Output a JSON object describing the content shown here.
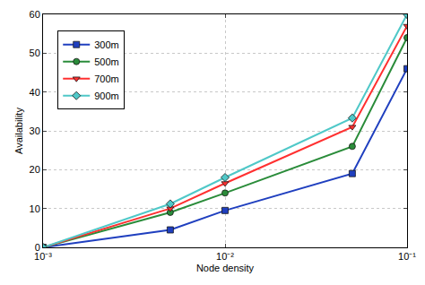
{
  "chart_data": {
    "type": "line",
    "x_label": "Node density",
    "y_label": "Availability",
    "x": [
      0.001,
      0.005,
      0.01,
      0.05,
      0.1
    ],
    "series": [
      {
        "name": "300m",
        "color": "#1f3fbf",
        "marker": "square",
        "values": [
          0,
          4.5,
          9.5,
          19,
          46
        ]
      },
      {
        "name": "500m",
        "color": "#2a8c3a",
        "marker": "circle",
        "values": [
          0,
          9,
          14,
          26,
          54
        ]
      },
      {
        "name": "700m",
        "color": "#ff3030",
        "marker": "triangle-down",
        "values": [
          0,
          10,
          16.5,
          31,
          57
        ]
      },
      {
        "name": "900m",
        "color": "#4fc8c8",
        "marker": "diamond",
        "values": [
          0,
          11.2,
          18,
          33.3,
          60
        ]
      }
    ],
    "log": "x",
    "xlim": [
      0.001,
      0.1
    ],
    "xticks": [
      {
        "value": 0.001,
        "label": "10⁻³"
      },
      {
        "value": 0.01,
        "label": "10⁻²"
      },
      {
        "value": 0.1,
        "label": "10⁻¹"
      }
    ],
    "ylim": [
      0,
      60
    ],
    "yticks": [
      0,
      10,
      20,
      30,
      40,
      50,
      60
    ],
    "grid": true,
    "legend": "upper left"
  }
}
